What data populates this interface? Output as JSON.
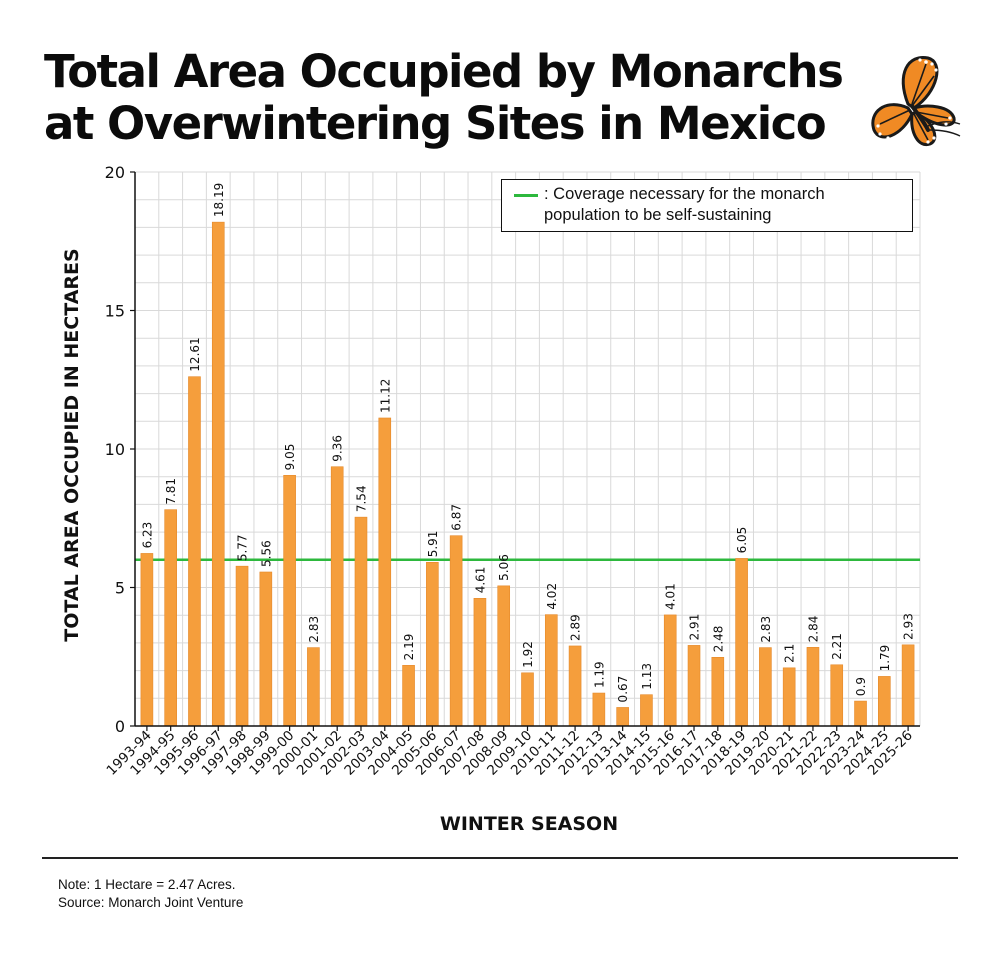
{
  "title_lines": [
    "Total Area Occupied by Monarchs",
    "at Overwintering Sites in Mexico"
  ],
  "notes": {
    "note": "Note: 1 Hectare = 2.47 Acres.",
    "source": "Source: Monarch Joint Venture"
  },
  "legend": {
    "lines": [
      ": Coverage necessary for the monarch",
      "population to be self-sustaining"
    ]
  },
  "colors": {
    "bar": "#f59e3c",
    "bar_stroke": "#e5892a",
    "threshold_line": "#2db83d",
    "grid": "#d9d9d9"
  },
  "icons": {
    "logo": "monarch-butterfly-icon"
  },
  "chart_data": {
    "type": "bar",
    "title": "Total Area Occupied by Monarchs at Overwintering Sites in Mexico",
    "xlabel": "WINTER SEASON",
    "ylabel": "TOTAL AREA OCCUPIED IN HECTARES",
    "ylim": [
      0,
      20
    ],
    "yticks": [
      0,
      5,
      10,
      15,
      20
    ],
    "grid": true,
    "legend_position": "top-right",
    "threshold": {
      "value": 6,
      "label": ": Coverage necessary for the monarch population to be self-sustaining"
    },
    "categories": [
      "1993-94",
      "1994-95",
      "1995-96",
      "1996-97",
      "1997-98",
      "1998-99",
      "1999-00",
      "2000-01",
      "2001-02",
      "2002-03",
      "2003-04",
      "2004-05",
      "2005-06",
      "2006-07",
      "2007-08",
      "2008-09",
      "2009-10",
      "2010-11",
      "2011-12",
      "2012-13",
      "2013-14",
      "2014-15",
      "2015-16",
      "2016-17",
      "2017-18",
      "2018-19",
      "2019-20",
      "2020-21",
      "2021-22",
      "2022-23",
      "2023-24",
      "2024-25",
      "2025-26"
    ],
    "values": [
      6.23,
      7.81,
      12.61,
      18.19,
      5.77,
      5.56,
      9.05,
      2.83,
      9.36,
      7.54,
      11.12,
      2.19,
      5.91,
      6.87,
      4.61,
      5.06,
      1.92,
      4.02,
      2.89,
      1.19,
      0.67,
      1.13,
      4.01,
      2.91,
      2.48,
      6.05,
      2.83,
      2.1,
      2.84,
      2.21,
      0.9,
      1.79,
      2.93
    ],
    "value_labels": [
      "6.23",
      "7.81",
      "12.61",
      "18.19",
      "5.77",
      "5.56",
      "9.05",
      "2.83",
      "9.36",
      "7.54",
      "11.12",
      "2.19",
      "5.91",
      "6.87",
      "4.61",
      "5.06",
      "1.92",
      "4.02",
      "2.89",
      "1.19",
      "0.67",
      "1.13",
      "4.01",
      "2.91",
      "2.48",
      "6.05",
      "2.83",
      "2.1",
      "2.84",
      "2.21",
      "0.9",
      "1.79",
      "2.93"
    ]
  }
}
